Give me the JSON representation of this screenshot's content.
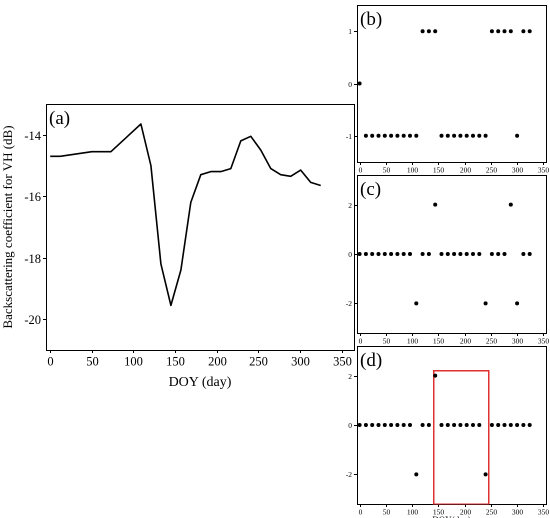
{
  "colors": {
    "line": "#000000",
    "points": "#000000",
    "highlight": "#e03030"
  },
  "chart_data": [
    {
      "id": "a",
      "type": "line",
      "panel_label": "(a)",
      "xlabel": "DOY (day)",
      "ylabel": "Backscattering coefficient for VH (dB)",
      "xlim": [
        -5,
        365
      ],
      "ylim": [
        -21.0,
        -13.0
      ],
      "xticks": [
        0,
        50,
        100,
        150,
        200,
        250,
        300,
        350
      ],
      "yticks": [
        -14,
        -16,
        -18,
        -20
      ],
      "series": [
        {
          "x": [
            0,
            12,
            50,
            73,
            109,
            121,
            133,
            145,
            157,
            169,
            181,
            193,
            205,
            217,
            229,
            241,
            253,
            265,
            277,
            289,
            301,
            313,
            325
          ],
          "y": [
            -14.7,
            -14.7,
            -14.55,
            -14.55,
            -13.65,
            -15.0,
            -18.2,
            -19.55,
            -18.4,
            -16.2,
            -15.3,
            -15.2,
            -15.2,
            -15.1,
            -14.2,
            -14.05,
            -14.5,
            -15.1,
            -15.3,
            -15.35,
            -15.15,
            -15.55,
            -15.65
          ]
        }
      ]
    },
    {
      "id": "b",
      "type": "scatter",
      "panel_label": "(b)",
      "xlim": [
        -5,
        355
      ],
      "ylim": [
        -1.5,
        1.5
      ],
      "xticks": [
        0,
        50,
        100,
        150,
        200,
        250,
        300,
        350
      ],
      "yticks": [
        1,
        0,
        -1
      ],
      "series": [
        {
          "x": [
            0,
            12,
            24,
            36,
            48,
            60,
            72,
            84,
            96,
            108,
            120,
            132,
            144,
            156,
            168,
            180,
            192,
            204,
            216,
            228,
            240,
            252,
            264,
            276,
            288,
            300,
            312,
            324
          ],
          "y": [
            0,
            -1,
            -1,
            -1,
            -1,
            -1,
            -1,
            -1,
            -1,
            -1,
            1,
            1,
            1,
            -1,
            -1,
            -1,
            -1,
            -1,
            -1,
            -1,
            -1,
            1,
            1,
            1,
            1,
            -1,
            1,
            1
          ]
        }
      ]
    },
    {
      "id": "c",
      "type": "scatter",
      "panel_label": "(c)",
      "xlim": [
        -5,
        355
      ],
      "ylim": [
        -3.2,
        3.2
      ],
      "xticks": [
        0,
        50,
        100,
        150,
        200,
        250,
        300,
        350
      ],
      "yticks": [
        2,
        0,
        -2
      ],
      "series": [
        {
          "x": [
            0,
            12,
            24,
            36,
            48,
            60,
            72,
            84,
            96,
            108,
            120,
            132,
            144,
            156,
            168,
            180,
            192,
            204,
            216,
            228,
            240,
            252,
            264,
            276,
            288,
            300,
            312,
            324
          ],
          "y": [
            0,
            0,
            0,
            0,
            0,
            0,
            0,
            0,
            0,
            -2,
            0,
            0,
            2,
            0,
            0,
            0,
            0,
            0,
            0,
            0,
            -2,
            0,
            0,
            0,
            2,
            -2,
            0,
            0
          ]
        }
      ]
    },
    {
      "id": "d",
      "type": "scatter",
      "panel_label": "(d)",
      "xlabel": "DOY(day)",
      "xlim": [
        -5,
        355
      ],
      "ylim": [
        -3.2,
        3.2
      ],
      "xticks": [
        0,
        50,
        100,
        150,
        200,
        250,
        300,
        350
      ],
      "yticks": [
        2,
        0,
        -2
      ],
      "highlight_range": {
        "x": [
          141,
          246
        ],
        "y": [
          -3.2,
          2.2
        ]
      },
      "series": [
        {
          "x": [
            0,
            12,
            24,
            36,
            48,
            60,
            72,
            84,
            96,
            108,
            120,
            132,
            144,
            156,
            168,
            180,
            192,
            204,
            216,
            228,
            240,
            252,
            264,
            276,
            288,
            300,
            312,
            324
          ],
          "y": [
            0,
            0,
            0,
            0,
            0,
            0,
            0,
            0,
            0,
            -2,
            0,
            0,
            2,
            0,
            0,
            0,
            0,
            0,
            0,
            0,
            -2,
            0,
            0,
            0,
            0,
            0,
            0,
            0
          ]
        }
      ]
    }
  ]
}
